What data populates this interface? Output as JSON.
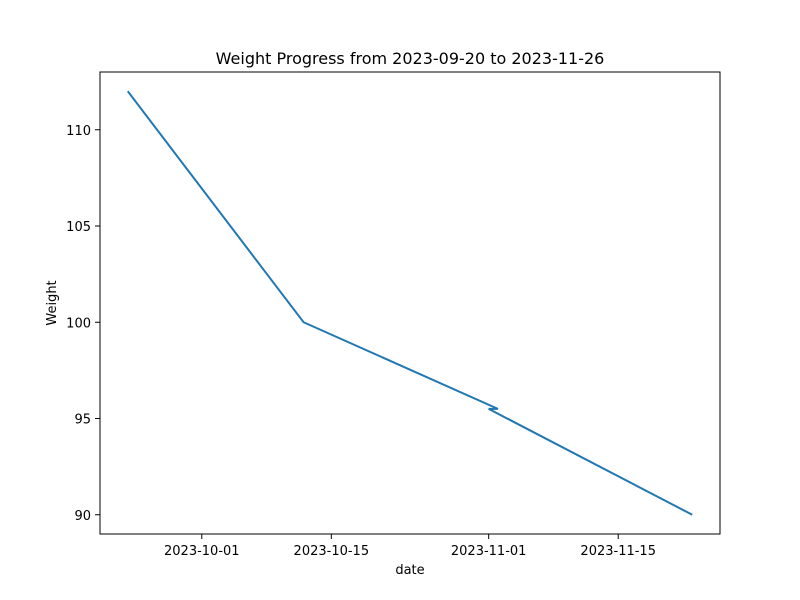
{
  "chart_data": {
    "type": "line",
    "title": "Weight Progress from 2023-09-20 to 2023-11-26",
    "xlabel": "date",
    "ylabel": "Weight",
    "grid": false,
    "x_type": "date",
    "xlim": [
      "2023-09-20",
      "2023-11-26"
    ],
    "ylim": [
      89.0,
      113.0
    ],
    "x_ticks": [
      "2023-10-01",
      "2023-10-15",
      "2023-11-01",
      "2023-11-15"
    ],
    "y_ticks": [
      90,
      95,
      100,
      105,
      110
    ],
    "series": [
      {
        "color": "#1f77b4",
        "points": [
          {
            "x": "2023-09-23",
            "y": 112.0
          },
          {
            "x": "2023-10-12",
            "y": 100.0
          },
          {
            "x": "2023-11-02",
            "y": 95.5
          },
          {
            "x": "2023-11-01",
            "y": 95.5
          },
          {
            "x": "2023-11-23",
            "y": 90.0
          }
        ]
      }
    ]
  }
}
